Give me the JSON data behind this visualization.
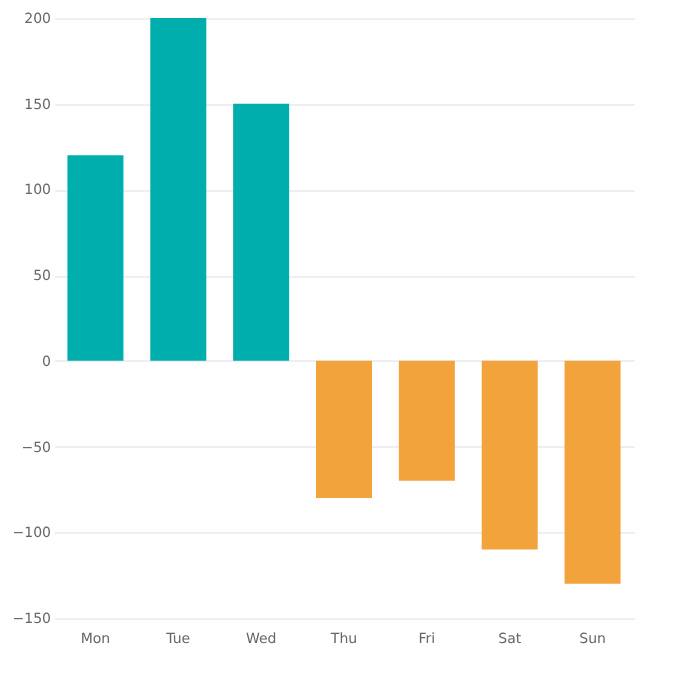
{
  "chart_data": {
    "type": "bar",
    "categories": [
      "Mon",
      "Tue",
      "Wed",
      "Thu",
      "Fri",
      "Sat",
      "Sun"
    ],
    "values": [
      120,
      200,
      150,
      -80,
      -70,
      -110,
      -130
    ],
    "colors": [
      "#00aeae",
      "#00aeae",
      "#00aeae",
      "#f2a33c",
      "#f2a33c",
      "#f2a33c",
      "#f2a33c"
    ],
    "ylim": [
      -150,
      200
    ],
    "yticks": [
      -150,
      -100,
      -50,
      0,
      50,
      100,
      150,
      200
    ],
    "grid": "y"
  }
}
